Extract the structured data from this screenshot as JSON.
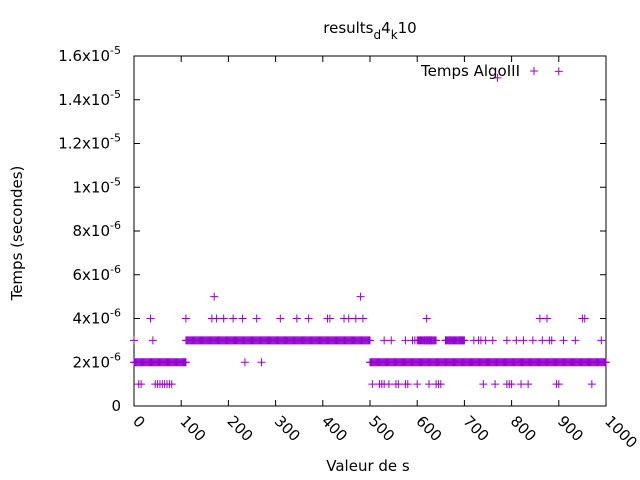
{
  "chart_data": {
    "type": "scatter",
    "title": "results_d4_k10",
    "title_parts": {
      "base": "results",
      "sub1": "d",
      "mid": "4",
      "sub2": "k",
      "end": "10"
    },
    "xlabel": "Valeur de s",
    "ylabel": "Temps (secondes)",
    "xlim": [
      0,
      1000
    ],
    "ylim": [
      0,
      1.6e-05
    ],
    "x_ticks": [
      0,
      100,
      200,
      300,
      400,
      500,
      600,
      700,
      800,
      900,
      1000
    ],
    "x_tick_labels": [
      "0",
      "100",
      "200",
      "300",
      "400",
      "500",
      "600",
      "700",
      "800",
      "900",
      "1000"
    ],
    "y_ticks": [
      {
        "value": 0,
        "label": "0",
        "exp": ""
      },
      {
        "value": 2e-06,
        "label": "2x10",
        "exp": "-6"
      },
      {
        "value": 4e-06,
        "label": "4x10",
        "exp": "-6"
      },
      {
        "value": 6e-06,
        "label": "6x10",
        "exp": "-6"
      },
      {
        "value": 8e-06,
        "label": "8x10",
        "exp": "-6"
      },
      {
        "value": 1e-05,
        "label": "1x10",
        "exp": "-5"
      },
      {
        "value": 1.2e-05,
        "label": "1.2x10",
        "exp": "-5"
      },
      {
        "value": 1.4e-05,
        "label": "1.4x10",
        "exp": "-5"
      },
      {
        "value": 1.6e-05,
        "label": "1.6x10",
        "exp": "-5"
      }
    ],
    "grid": false,
    "legend_position": "top-right",
    "marker": "+",
    "series": [
      {
        "name": "Temps AlgoIII",
        "color": "#9400d3",
        "dense_runs": [
          {
            "y": 3e-06,
            "x_start": 110,
            "x_end": 500
          },
          {
            "y": 2e-06,
            "x_start": 0,
            "x_end": 110
          },
          {
            "y": 2e-06,
            "x_start": 500,
            "x_end": 1000
          },
          {
            "y": 3e-06,
            "x_start": 600,
            "x_end": 640
          },
          {
            "y": 3e-06,
            "x_start": 660,
            "x_end": 700
          }
        ],
        "points": [
          [
            0,
            3e-06
          ],
          [
            35,
            4e-06
          ],
          [
            40,
            3e-06
          ],
          [
            110,
            4e-06
          ],
          [
            165,
            4e-06
          ],
          [
            170,
            5e-06
          ],
          [
            175,
            4e-06
          ],
          [
            190,
            4e-06
          ],
          [
            210,
            4e-06
          ],
          [
            230,
            4e-06
          ],
          [
            260,
            4e-06
          ],
          [
            310,
            4e-06
          ],
          [
            345,
            4e-06
          ],
          [
            370,
            4e-06
          ],
          [
            410,
            4e-06
          ],
          [
            415,
            4e-06
          ],
          [
            445,
            4e-06
          ],
          [
            455,
            4e-06
          ],
          [
            470,
            4e-06
          ],
          [
            480,
            5e-06
          ],
          [
            485,
            4e-06
          ],
          [
            620,
            4e-06
          ],
          [
            860,
            4e-06
          ],
          [
            875,
            4e-06
          ],
          [
            950,
            4e-06
          ],
          [
            955,
            4e-06
          ],
          [
            990,
            3e-06
          ],
          [
            770,
            1.5e-05
          ],
          [
            900,
            1.53e-05
          ],
          [
            10,
            1e-06
          ],
          [
            15,
            1e-06
          ],
          [
            45,
            1e-06
          ],
          [
            50,
            1e-06
          ],
          [
            55,
            1e-06
          ],
          [
            60,
            1e-06
          ],
          [
            65,
            1e-06
          ],
          [
            70,
            1e-06
          ],
          [
            75,
            1e-06
          ],
          [
            80,
            1e-06
          ],
          [
            235,
            2e-06
          ],
          [
            270,
            2e-06
          ],
          [
            505,
            1e-06
          ],
          [
            520,
            1e-06
          ],
          [
            525,
            1e-06
          ],
          [
            530,
            1e-06
          ],
          [
            540,
            1e-06
          ],
          [
            555,
            1e-06
          ],
          [
            560,
            1e-06
          ],
          [
            575,
            1e-06
          ],
          [
            580,
            1e-06
          ],
          [
            600,
            1e-06
          ],
          [
            625,
            1e-06
          ],
          [
            640,
            1e-06
          ],
          [
            645,
            1e-06
          ],
          [
            650,
            1e-06
          ],
          [
            740,
            1e-06
          ],
          [
            765,
            1e-06
          ],
          [
            790,
            1e-06
          ],
          [
            795,
            1e-06
          ],
          [
            800,
            1e-06
          ],
          [
            820,
            1e-06
          ],
          [
            835,
            1e-06
          ],
          [
            895,
            1e-06
          ],
          [
            900,
            1e-06
          ],
          [
            970,
            1e-06
          ],
          [
            530,
            3e-06
          ],
          [
            545,
            3e-06
          ],
          [
            575,
            3e-06
          ],
          [
            590,
            3e-06
          ],
          [
            595,
            3e-06
          ],
          [
            615,
            3e-06
          ],
          [
            620,
            3e-06
          ],
          [
            625,
            3e-06
          ],
          [
            630,
            3e-06
          ],
          [
            660,
            3e-06
          ],
          [
            670,
            3e-06
          ],
          [
            690,
            3e-06
          ],
          [
            695,
            3e-06
          ],
          [
            720,
            3e-06
          ],
          [
            730,
            3e-06
          ],
          [
            735,
            3e-06
          ],
          [
            745,
            3e-06
          ],
          [
            760,
            3e-06
          ],
          [
            790,
            3e-06
          ],
          [
            810,
            3e-06
          ],
          [
            825,
            3e-06
          ],
          [
            845,
            3e-06
          ],
          [
            865,
            3e-06
          ],
          [
            880,
            3e-06
          ],
          [
            885,
            3e-06
          ],
          [
            910,
            3e-06
          ],
          [
            935,
            3e-06
          ]
        ]
      }
    ]
  }
}
